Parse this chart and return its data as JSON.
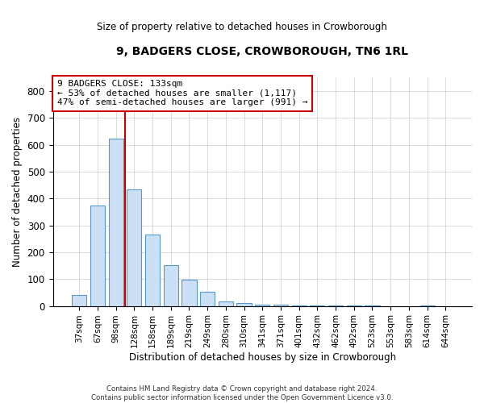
{
  "title": "9, BADGERS CLOSE, CROWBOROUGH, TN6 1RL",
  "subtitle": "Size of property relative to detached houses in Crowborough",
  "xlabel": "Distribution of detached houses by size in Crowborough",
  "ylabel": "Number of detached properties",
  "categories": [
    "37sqm",
    "67sqm",
    "98sqm",
    "128sqm",
    "158sqm",
    "189sqm",
    "219sqm",
    "249sqm",
    "280sqm",
    "310sqm",
    "341sqm",
    "371sqm",
    "401sqm",
    "432sqm",
    "462sqm",
    "492sqm",
    "523sqm",
    "553sqm",
    "583sqm",
    "614sqm",
    "644sqm"
  ],
  "values": [
    42,
    375,
    622,
    435,
    265,
    152,
    97,
    52,
    18,
    10,
    6,
    4,
    3,
    2,
    1,
    1,
    1,
    0,
    0,
    1,
    0
  ],
  "bar_color": "#cce0f5",
  "bar_edge_color": "#5599cc",
  "vline_x": 2.5,
  "vline_color": "#cc0000",
  "annotation_text": "9 BADGERS CLOSE: 133sqm\n← 53% of detached houses are smaller (1,117)\n47% of semi-detached houses are larger (991) →",
  "annotation_box_color": "#ffffff",
  "annotation_box_edge": "#cc0000",
  "footnote": "Contains HM Land Registry data © Crown copyright and database right 2024.\nContains public sector information licensed under the Open Government Licence v3.0.",
  "ylim": [
    0,
    850
  ],
  "yticks": [
    0,
    100,
    200,
    300,
    400,
    500,
    600,
    700,
    800
  ],
  "background_color": "#ffffff",
  "grid_color": "#cccccc"
}
